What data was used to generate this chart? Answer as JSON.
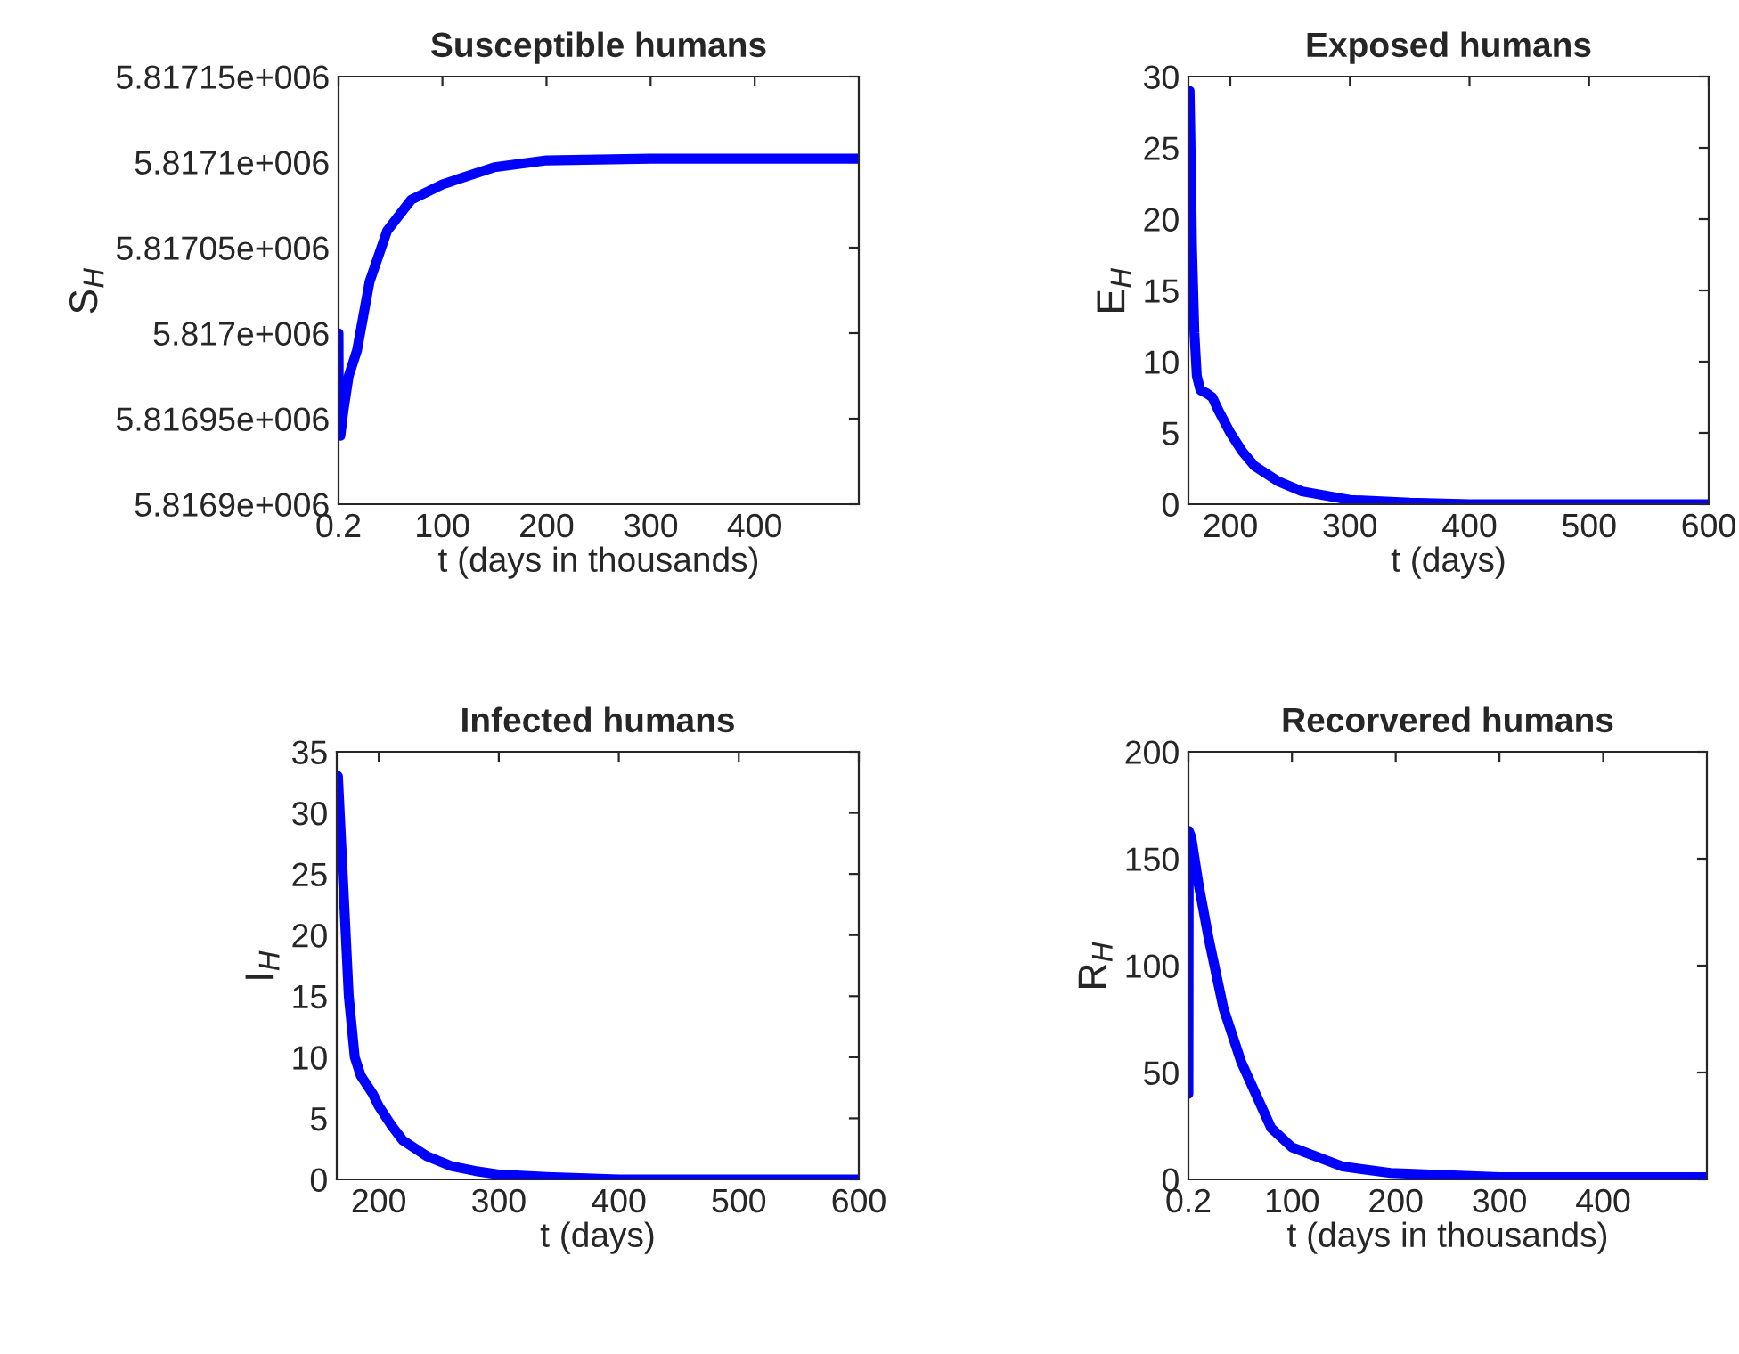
{
  "chart_data": [
    {
      "type": "line",
      "title": "Susceptible humans",
      "xlabel": "t (days in thousands)",
      "ylabel": "S$_{H}$",
      "x": [
        0.2,
        0.5,
        2,
        5,
        10,
        18,
        30,
        47,
        70,
        100,
        150,
        200,
        300,
        400,
        500
      ],
      "series": [
        {
          "color": "#0000ff",
          "values": [
            5817000,
            5816950,
            5816940,
            5816955,
            5816975,
            5816990,
            5817030,
            5817060,
            5817078,
            5817087,
            5817097,
            5817101,
            5817102,
            5817102,
            5817102
          ]
        }
      ],
      "xlim": [
        0.2,
        500
      ],
      "xticks": [
        0.2,
        100,
        200,
        300,
        400
      ],
      "ylim": [
        5816900,
        5817150
      ],
      "yticks": [
        {
          "value": 5816900,
          "label": "5.8169e+006"
        },
        {
          "value": 5816950,
          "label": "5.81695e+006"
        },
        {
          "value": 5817000,
          "label": "5.817e+006"
        },
        {
          "value": 5817050,
          "label": "5.81705e+006"
        },
        {
          "value": 5817100,
          "label": "5.8171e+006"
        },
        {
          "value": 5817150,
          "label": "5.81715e+006"
        }
      ]
    },
    {
      "type": "line",
      "title": "Exposed humans",
      "xlabel": "t (days)",
      "ylabel": "E$_{H}$",
      "x": [
        166,
        167,
        168,
        170,
        172,
        175,
        180,
        185,
        190,
        200,
        210,
        220,
        240,
        260,
        300,
        350,
        400,
        600
      ],
      "series": [
        {
          "color": "#0000ff",
          "values": [
            29,
            24,
            18,
            12,
            9,
            8,
            7.8,
            7.5,
            6.6,
            5,
            3.7,
            2.7,
            1.6,
            0.9,
            0.3,
            0.1,
            0,
            0
          ]
        }
      ],
      "xlim": [
        165,
        600
      ],
      "xticks": [
        200,
        300,
        400,
        500,
        600
      ],
      "ylim": [
        0,
        30
      ],
      "yticks": [
        0,
        5,
        10,
        15,
        20,
        25,
        30
      ]
    },
    {
      "type": "line",
      "title": "Infected humans",
      "xlabel": "t (days)",
      "ylabel": "I$_{H}$",
      "x": [
        166,
        170,
        175,
        180,
        185,
        195,
        200,
        210,
        220,
        240,
        260,
        280,
        300,
        340,
        400,
        600
      ],
      "series": [
        {
          "color": "#0000ff",
          "values": [
            33,
            25,
            15,
            10,
            8.5,
            7,
            6,
            4.5,
            3.2,
            1.9,
            1.1,
            0.7,
            0.4,
            0.2,
            0,
            0
          ]
        }
      ],
      "xlim": [
        165,
        600
      ],
      "xticks": [
        200,
        300,
        400,
        500,
        600
      ],
      "ylim": [
        0,
        35
      ],
      "yticks": [
        0,
        5,
        10,
        15,
        20,
        25,
        30,
        35
      ]
    },
    {
      "type": "line",
      "title": "Recorvered humans",
      "xlabel": "t (days in thousands)",
      "ylabel": "R$_{H}$",
      "x": [
        0.2,
        0.5,
        3,
        10,
        20,
        34,
        51,
        80,
        100,
        149,
        195,
        300,
        500
      ],
      "series": [
        {
          "color": "#0000ff",
          "values": [
            40,
            163,
            160,
            138,
            112,
            80,
            55,
            24,
            15,
            6,
            3,
            1,
            1
          ]
        }
      ],
      "xlim": [
        0.2,
        500
      ],
      "xticks": [
        0.2,
        100,
        200,
        300,
        400
      ],
      "ylim": [
        0,
        200
      ],
      "yticks": [
        0,
        50,
        100,
        150,
        200
      ]
    }
  ]
}
